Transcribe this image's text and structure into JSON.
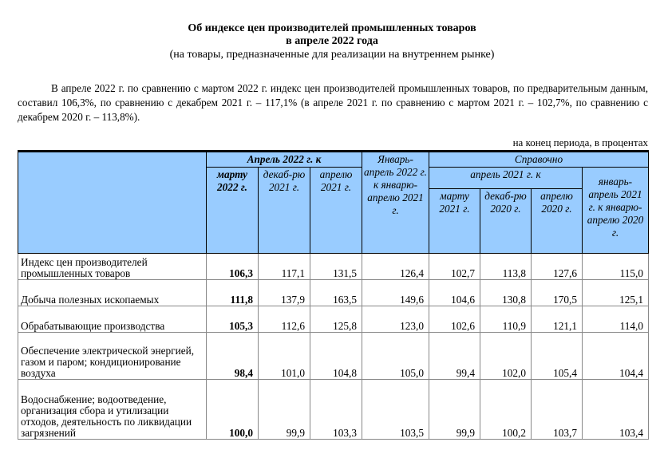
{
  "title": {
    "line1": "Об индексе цен производителей промышленных товаров",
    "line2": "в апреле 2022 года",
    "line3": "(на товары, предназначенные для реализации на внутреннем рынке)"
  },
  "paragraph": "В апреле 2022 г. по сравнению с мартом 2022 г. индекс цен производителей промышленных товаров, по предварительным данным, составил 106,3%, по сравнению с декабрем 2021 г. – 117,1% (в апреле 2021 г. по сравнению с мартом 2021 г. – 102,7%, по сравнению с декабрем 2020 г. – 113,8%).",
  "unit_note": "на конец периода, в процентах",
  "table": {
    "group1": "Апрель 2022 г. к",
    "col_mar22": "марту 2022 г.",
    "col_dec21": "декаб-рю 2021 г.",
    "col_apr21": "апрелю 2021 г.",
    "col_janapr22": "Январь-апрель 2022 г. к январю-апрелю 2021 г.",
    "group2": "Справочно",
    "subgroup2": "апрель 2021 г. к",
    "col_mar21": "марту 2021 г.",
    "col_dec20": "декаб-рю 2020 г.",
    "col_apr20": "апрелю 2020 г.",
    "col_janapr21": "январь-апрель 2021 г. к январю-апрелю 2020 г.",
    "rows": [
      {
        "label": "Индекс цен производителей промышленных товаров",
        "values": [
          "106,3",
          "117,1",
          "131,5",
          "126,4",
          "102,7",
          "113,8",
          "127,6",
          "115,0"
        ]
      },
      {
        "label": "Добыча полезных ископаемых",
        "values": [
          "111,8",
          "137,9",
          "163,5",
          "149,6",
          "104,6",
          "130,8",
          "170,5",
          "125,1"
        ]
      },
      {
        "label": "Обрабатывающие производства",
        "values": [
          "105,3",
          "112,6",
          "125,8",
          "123,0",
          "102,6",
          "110,9",
          "121,1",
          "114,0"
        ]
      },
      {
        "label": "Обеспечение электрической энергией, газом и паром; кондиционирование воздуха",
        "values": [
          "98,4",
          "101,0",
          "104,8",
          "105,0",
          "99,4",
          "102,0",
          "105,4",
          "104,4"
        ]
      },
      {
        "label": "Водоснабжение; водоотведение, организация сбора и утилизации отходов, деятельность по ликвидации загрязнений",
        "values": [
          "100,0",
          "99,9",
          "103,3",
          "103,5",
          "99,9",
          "100,2",
          "103,7",
          "103,4"
        ]
      }
    ]
  }
}
